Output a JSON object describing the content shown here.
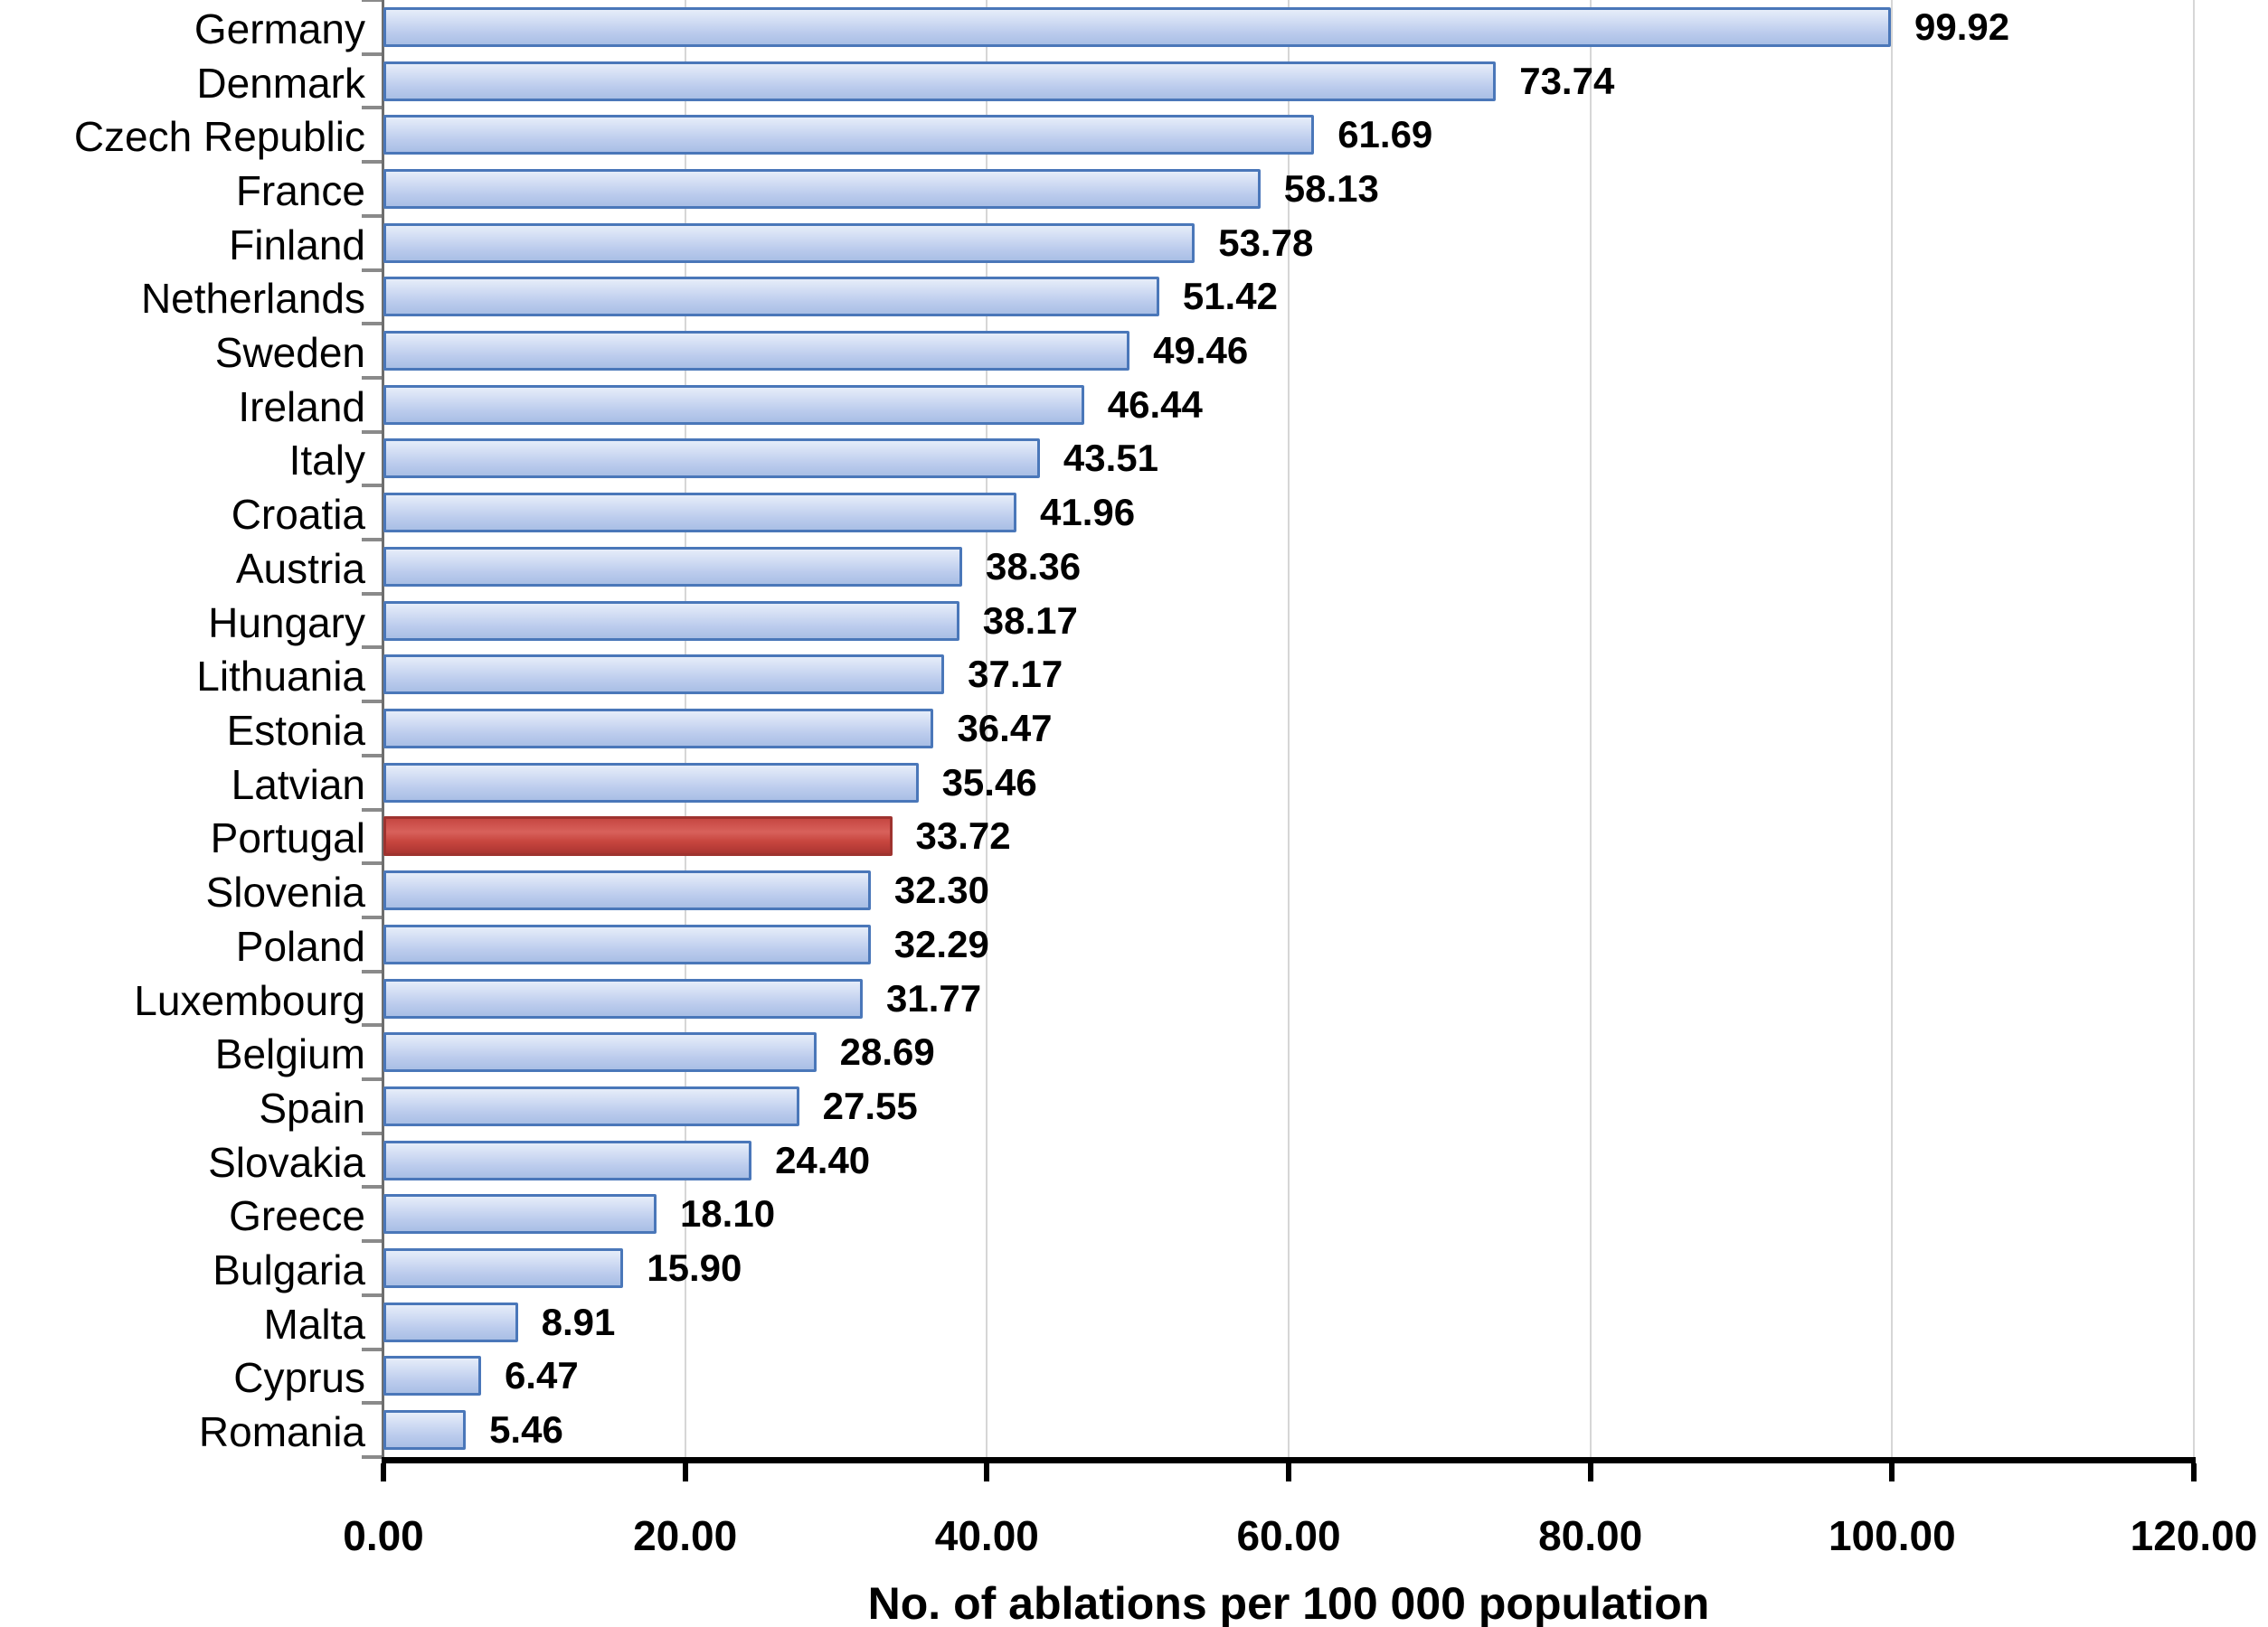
{
  "chart_data": {
    "type": "bar",
    "orientation": "horizontal",
    "title": "",
    "xlabel": "No. of ablations per 100 000 population",
    "ylabel": "",
    "xlim": [
      0,
      120
    ],
    "xticks": [
      0,
      20,
      40,
      60,
      80,
      100,
      120
    ],
    "xtick_labels": [
      "0.00",
      "20.00",
      "40.00",
      "60.00",
      "80.00",
      "100.00",
      "120.00"
    ],
    "grid": true,
    "legend": false,
    "categories": [
      "Germany",
      "Denmark",
      "Czech Republic",
      "France",
      "Finland",
      "Netherlands",
      "Sweden",
      "Ireland",
      "Italy",
      "Croatia",
      "Austria",
      "Hungary",
      "Lithuania",
      "Estonia",
      "Latvian",
      "Portugal",
      "Slovenia",
      "Poland",
      "Luxembourg",
      "Belgium",
      "Spain",
      "Slovakia",
      "Greece",
      "Bulgaria",
      "Malta",
      "Cyprus",
      "Romania"
    ],
    "values": [
      99.92,
      73.74,
      61.69,
      58.13,
      53.78,
      51.42,
      49.46,
      46.44,
      43.51,
      41.96,
      38.36,
      38.17,
      37.17,
      36.47,
      35.46,
      33.72,
      32.3,
      32.29,
      31.77,
      28.69,
      27.55,
      24.4,
      18.1,
      15.9,
      8.91,
      6.47,
      5.46
    ],
    "value_labels": [
      "99.92",
      "73.74",
      "61.69",
      "58.13",
      "53.78",
      "51.42",
      "49.46",
      "46.44",
      "43.51",
      "41.96",
      "38.36",
      "38.17",
      "37.17",
      "36.47",
      "35.46",
      "33.72",
      "32.30",
      "32.29",
      "31.77",
      "28.69",
      "27.55",
      "24.40",
      "18.10",
      "15.90",
      "8.91",
      "6.47",
      "5.46"
    ],
    "highlight_category": "Portugal",
    "colors": {
      "bar_fill_light": "#d3def4",
      "bar_fill_dark": "#a9bfe5",
      "bar_border": "#4a77b9",
      "highlight_fill_light": "#d8615b",
      "highlight_fill_dark": "#ab3531",
      "highlight_border": "#9e332f",
      "gridline": "#d6d6d6",
      "axis": "#000000"
    }
  }
}
